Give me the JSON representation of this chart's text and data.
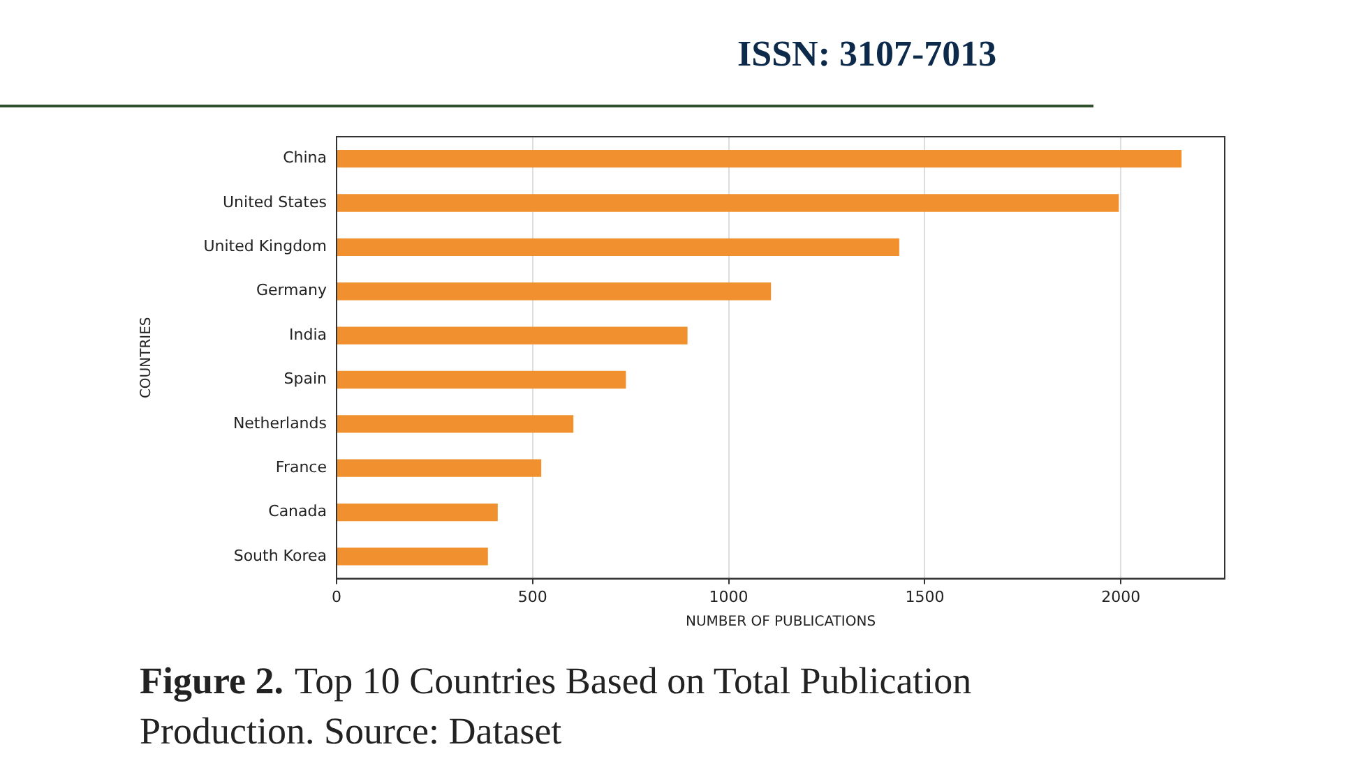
{
  "chart_data": {
    "type": "bar",
    "orientation": "horizontal",
    "categories": [
      "China",
      "United States",
      "United Kingdom",
      "Germany",
      "India",
      "Spain",
      "Netherlands",
      "France",
      "Canada",
      "South Korea"
    ],
    "values": [
      2155,
      1995,
      1435,
      1108,
      895,
      738,
      604,
      522,
      411,
      386
    ],
    "color": "#f0902e",
    "xlim": [
      0,
      2265
    ],
    "xticks": [
      0,
      500,
      1000,
      1500,
      2000
    ],
    "xlabel": "NUMBER OF PUBLICATIONS",
    "ylabel": "COUNTRIES",
    "grid": "x",
    "annotations": [
      "ISSN: 3107-7013",
      "Figure 2.",
      "Top 10 Countries Based on Total Publication Production. Source: Dataset"
    ]
  }
}
